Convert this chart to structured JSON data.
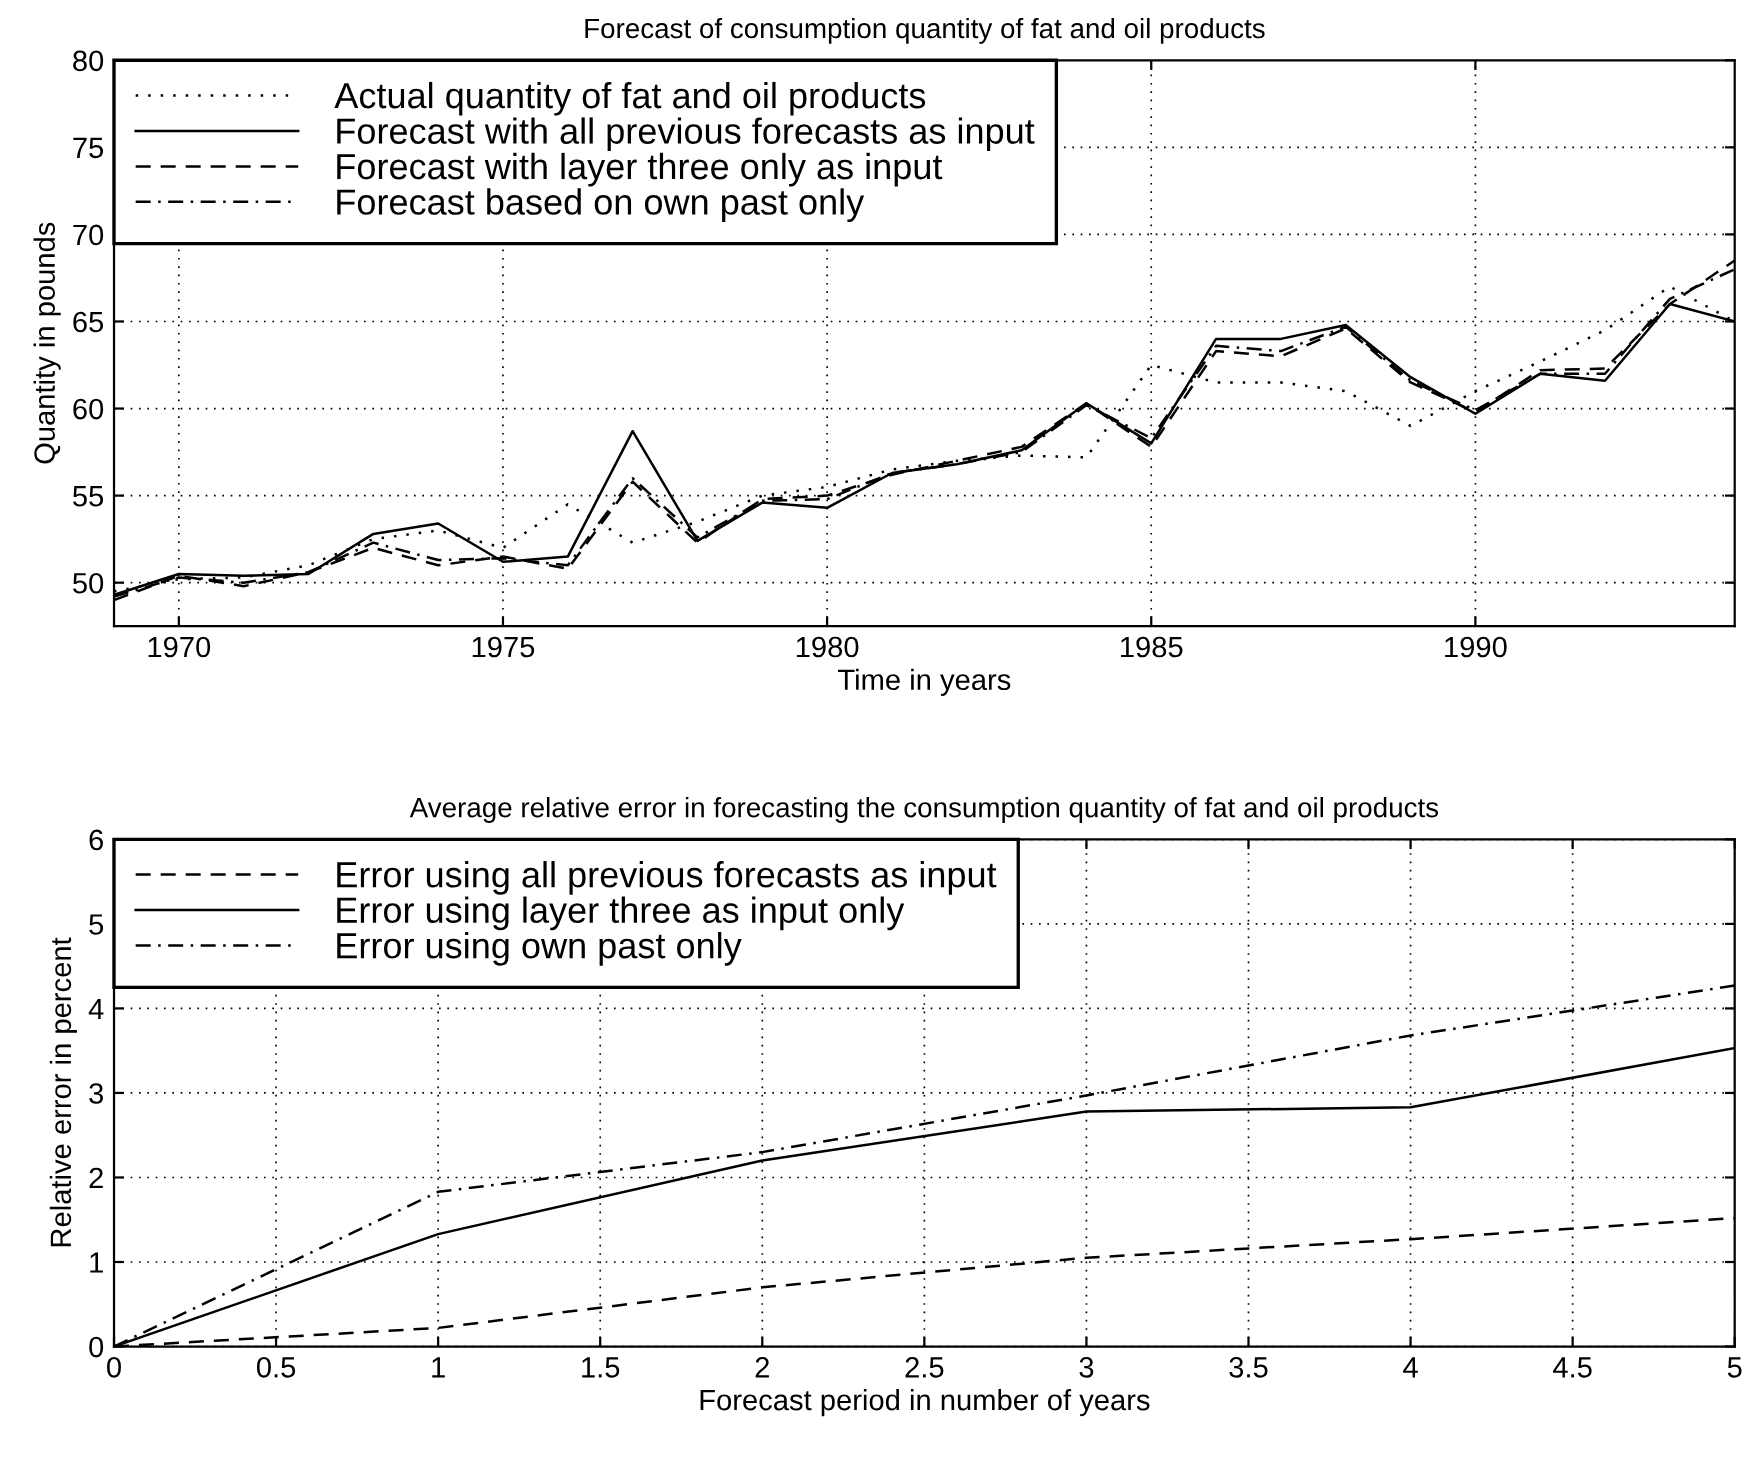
{
  "chart_data": [
    {
      "type": "line",
      "title": "Forecast of consumption quantity of fat and oil products",
      "xlabel": "Time in years",
      "ylabel": "Quantity in pounds",
      "x": [
        1969,
        1970,
        1971,
        1972,
        1973,
        1974,
        1975,
        1976,
        1977,
        1978,
        1979,
        1980,
        1981,
        1982,
        1983,
        1984,
        1985,
        1986,
        1987,
        1988,
        1989,
        1990,
        1991,
        1992,
        1993,
        1994
      ],
      "series": [
        {
          "name": "Actual quantity of fat and oil products",
          "color": "#000000",
          "line_style": "dotted",
          "values": [
            49.5,
            50.2,
            50.3,
            51.0,
            52.5,
            53.0,
            52.0,
            54.5,
            52.3,
            53.5,
            55.0,
            55.5,
            56.5,
            57.0,
            57.3,
            57.2,
            62.5,
            61.5,
            61.5,
            61.0,
            59.0,
            61.0,
            62.7,
            64.5,
            67.0,
            65.0
          ]
        },
        {
          "name": "Forecast with all previous forecasts as input",
          "color": "#000000",
          "line_style": "solid",
          "values": [
            49.3,
            50.5,
            50.4,
            50.5,
            52.8,
            53.4,
            51.2,
            51.5,
            58.7,
            52.4,
            54.6,
            54.3,
            56.3,
            56.8,
            57.6,
            60.3,
            58.0,
            64.0,
            64.0,
            64.8,
            61.8,
            59.7,
            62.0,
            61.6,
            66.0,
            65.0
          ]
        },
        {
          "name": "Forecast with layer three only as input",
          "color": "#000000",
          "line_style": "dashed",
          "values": [
            49.0,
            50.4,
            49.8,
            50.6,
            52.0,
            51.0,
            51.5,
            50.8,
            55.8,
            52.3,
            54.8,
            55.0,
            56.2,
            57.0,
            57.8,
            60.3,
            57.8,
            63.3,
            63.0,
            64.6,
            61.5,
            59.8,
            62.2,
            62.3,
            66.0,
            68.5
          ]
        },
        {
          "name": "Forecast based on own past only",
          "color": "#000000",
          "line_style": "dashdot",
          "values": [
            49.2,
            50.3,
            50.0,
            50.6,
            52.3,
            51.3,
            51.4,
            51.0,
            56.0,
            52.6,
            54.7,
            54.8,
            56.3,
            56.8,
            57.5,
            60.2,
            58.3,
            63.6,
            63.3,
            64.7,
            61.6,
            59.9,
            62.0,
            62.0,
            66.3,
            68.0
          ]
        }
      ],
      "xlim": [
        1969,
        1994
      ],
      "xticks": [
        1970,
        1975,
        1980,
        1985,
        1990
      ],
      "ylim": [
        47.5,
        80
      ],
      "yticks": [
        50,
        55,
        60,
        65,
        70,
        75,
        80
      ],
      "grid": true,
      "legend": "top left"
    },
    {
      "type": "line",
      "title": "Average relative error in forecasting the consumption quantity of fat and oil products",
      "xlabel": "Forecast period in number of years",
      "ylabel": "Relative error in percent",
      "x": [
        0,
        1,
        2,
        3,
        4,
        5
      ],
      "series": [
        {
          "name": "Error using all previous forecasts as input",
          "color": "#000000",
          "line_style": "dashed",
          "values": [
            0,
            0.22,
            0.7,
            1.05,
            1.27,
            1.52
          ]
        },
        {
          "name": "Error using layer three as input only",
          "color": "#000000",
          "line_style": "solid",
          "values": [
            0,
            1.33,
            2.2,
            2.78,
            2.83,
            3.53
          ]
        },
        {
          "name": "Error using own past only",
          "color": "#000000",
          "line_style": "dashdot",
          "values": [
            0,
            1.83,
            2.3,
            2.97,
            3.68,
            4.27
          ]
        }
      ],
      "xlim": [
        0,
        5
      ],
      "xticks": [
        0,
        0.5,
        1,
        1.5,
        2,
        2.5,
        3,
        3.5,
        4,
        4.5,
        5
      ],
      "ylim": [
        0,
        6
      ],
      "yticks": [
        0,
        1,
        2,
        3,
        4,
        5,
        6
      ],
      "grid": true,
      "legend": "top left"
    }
  ]
}
